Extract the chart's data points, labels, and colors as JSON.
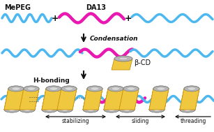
{
  "bg_color": "#ffffff",
  "blue_color": "#4db8f0",
  "magenta_color": "#e818b0",
  "yellow_dark": "#c8900a",
  "yellow_mid": "#e0a820",
  "yellow_light": "#f0c840",
  "gray_top": "#b8b8b8",
  "gray_inner": "#d8d8d8",
  "arrow_color": "#111111",
  "text_color": "#111111",
  "label_mepeg": "MePEG",
  "label_da13": "DA13",
  "label_condensation": "Condensation",
  "label_bcd": "β-CD",
  "label_hbonding": "H-bonding",
  "label_stabilizing": "stabilizing",
  "label_sliding": "sliding",
  "label_threading": "threading",
  "figw": 3.07,
  "figh": 1.89,
  "dpi": 100
}
